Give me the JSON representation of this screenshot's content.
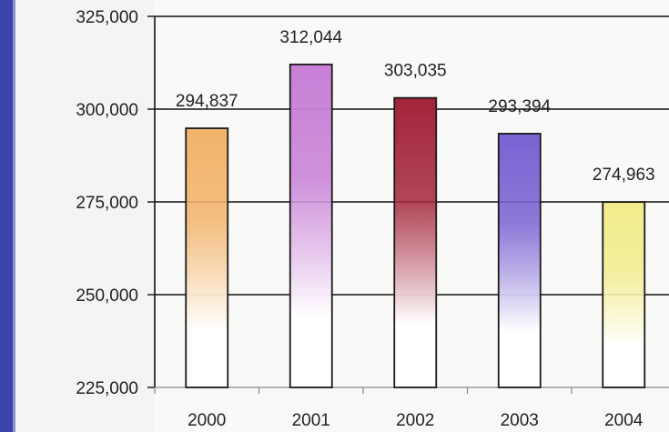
{
  "chart_data": {
    "type": "bar",
    "categories": [
      "2000",
      "2001",
      "2002",
      "2003",
      "2004"
    ],
    "values": [
      294837,
      312044,
      303035,
      293394,
      274963
    ],
    "data_labels": [
      "294,837",
      "312,044",
      "303,035",
      "293,394",
      "274,963"
    ],
    "y_ticks": [
      225000,
      250000,
      275000,
      300000,
      325000
    ],
    "y_tick_labels": [
      "225,000",
      "250,000",
      "275,000",
      "300,000",
      "325,000"
    ],
    "ylim": [
      225000,
      325000
    ],
    "grid": true,
    "legend": "none",
    "bar_colors": [
      "#f2b36a",
      "#c77fd6",
      "#a3243a",
      "#7a62d2",
      "#f2ec8a"
    ]
  },
  "colors": {
    "frame_accent": "#3b44a8",
    "plot_background": "#f9f9f7",
    "gridline": "#111111",
    "bar_outline": "#1a1a1a"
  }
}
